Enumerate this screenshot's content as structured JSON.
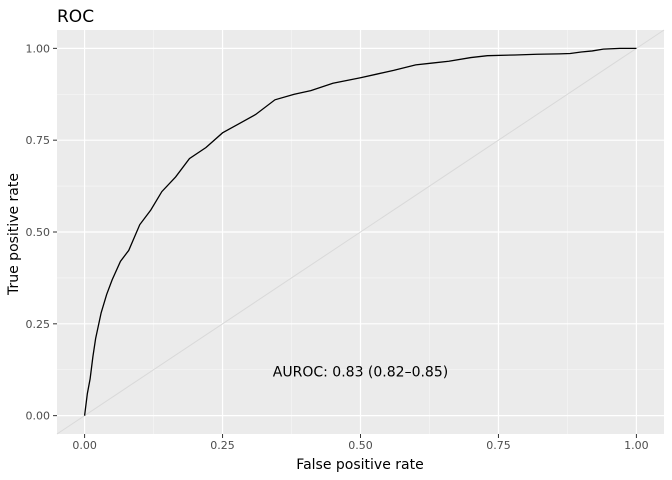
{
  "chart_data": {
    "type": "line",
    "title": "ROC",
    "xlabel": "False positive rate",
    "ylabel": "True positive rate",
    "xlim": [
      -0.05,
      1.05
    ],
    "ylim": [
      -0.05,
      1.05
    ],
    "x_ticks": [
      0,
      0.25,
      0.5,
      0.75,
      1
    ],
    "x_tick_labels": [
      "0.00",
      "0.25",
      "0.50",
      "0.75",
      "1.00"
    ],
    "y_ticks": [
      0,
      0.25,
      0.5,
      0.75,
      1
    ],
    "y_tick_labels": [
      "0.00",
      "0.25",
      "0.50",
      "0.75",
      "1.00"
    ],
    "grid": true,
    "annotation": {
      "text": "AUROC: 0.83 (0.82–0.85)",
      "x": 0.5,
      "y": 0.12
    },
    "reference_line": {
      "x": [
        -0.05,
        1.05
      ],
      "y": [
        -0.05,
        1.05
      ],
      "color": "#d9d9d9"
    },
    "series": [
      {
        "color": "#000000",
        "x": [
          0,
          0.005,
          0.01,
          0.015,
          0.02,
          0.03,
          0.04,
          0.05,
          0.065,
          0.08,
          0.1,
          0.12,
          0.14,
          0.165,
          0.19,
          0.22,
          0.25,
          0.28,
          0.31,
          0.345,
          0.38,
          0.41,
          0.45,
          0.5,
          0.53,
          0.56,
          0.6,
          0.63,
          0.66,
          0.7,
          0.73,
          0.78,
          0.82,
          0.86,
          0.88,
          0.9,
          0.92,
          0.94,
          0.97,
          1.0
        ],
        "y": [
          0,
          0.06,
          0.1,
          0.16,
          0.21,
          0.28,
          0.33,
          0.37,
          0.42,
          0.45,
          0.52,
          0.56,
          0.61,
          0.65,
          0.7,
          0.73,
          0.77,
          0.795,
          0.82,
          0.86,
          0.875,
          0.885,
          0.905,
          0.92,
          0.93,
          0.94,
          0.955,
          0.96,
          0.965,
          0.975,
          0.98,
          0.982,
          0.984,
          0.985,
          0.986,
          0.99,
          0.993,
          0.998,
          1.0,
          1.0
        ]
      }
    ]
  }
}
